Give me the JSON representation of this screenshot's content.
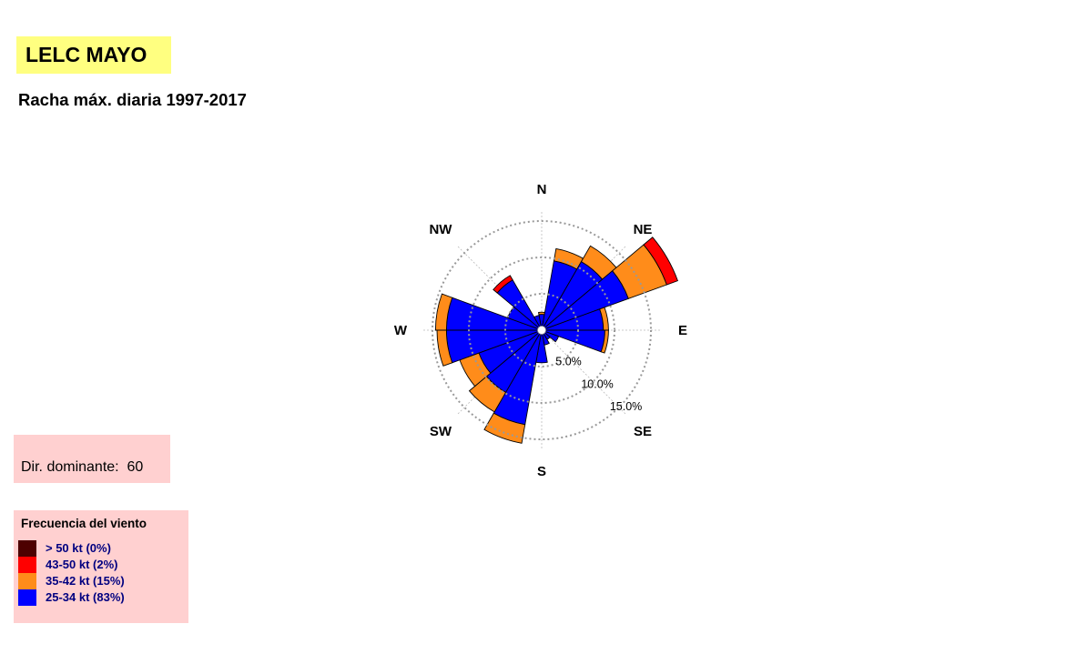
{
  "header": {
    "title": "LELC MAYO",
    "subtitle": "Racha máx. diaria 1997-2017"
  },
  "dominant": {
    "label": "Dir. dominante:",
    "value": "60"
  },
  "legend": {
    "title": "Frecuencia del viento"
  },
  "chart_data": {
    "type": "wind_rose",
    "directions": [
      "N",
      "NE",
      "E",
      "SE",
      "S",
      "SW",
      "W",
      "NW"
    ],
    "ring_labels": [
      "5.0%",
      "10.0%",
      "15.0%"
    ],
    "rings": [
      5,
      10,
      15
    ],
    "bins": [
      {
        "name": "> 50 kt (0%)",
        "color": "#4d0000"
      },
      {
        "name": "43-50 kt (2%)",
        "color": "#ff0000"
      },
      {
        "name": "35-42 kt (15%)",
        "color": "#ff8c1a"
      },
      {
        "name": "25-34 kt (83%)",
        "color": "#0000ff"
      }
    ],
    "sectors": [
      {
        "angle": 0,
        "values": [
          1.8,
          0.3,
          0,
          0
        ]
      },
      {
        "angle": 20,
        "values": [
          9.3,
          1.7,
          0,
          0
        ]
      },
      {
        "angle": 40,
        "values": [
          10.5,
          2.5,
          0,
          0
        ]
      },
      {
        "angle": 60,
        "values": [
          12.3,
          5.6,
          1.6,
          0
        ]
      },
      {
        "angle": 80,
        "values": [
          8.1,
          0.7,
          0,
          0
        ]
      },
      {
        "angle": 100,
        "values": [
          8.3,
          0.5,
          0,
          0
        ]
      },
      {
        "angle": 120,
        "values": [
          2.1,
          0,
          0,
          0
        ]
      },
      {
        "angle": 140,
        "values": [
          1.1,
          0,
          0,
          0
        ]
      },
      {
        "angle": 160,
        "values": [
          1.7,
          0,
          0,
          0
        ]
      },
      {
        "angle": 180,
        "values": [
          4.1,
          0,
          0,
          0
        ]
      },
      {
        "angle": 200,
        "values": [
          12.8,
          2.6,
          0,
          0
        ]
      },
      {
        "angle": 220,
        "values": [
          9.5,
          3.1,
          0,
          0
        ]
      },
      {
        "angle": 240,
        "values": [
          8.8,
          2.8,
          0,
          0
        ]
      },
      {
        "angle": 260,
        "values": [
          12.7,
          1.3,
          0,
          0
        ]
      },
      {
        "angle": 280,
        "values": [
          12.7,
          1.5,
          0,
          0
        ]
      },
      {
        "angle": 300,
        "values": [
          4.6,
          0,
          0,
          0
        ]
      },
      {
        "angle": 320,
        "values": [
          7.6,
          0,
          0.7,
          0
        ]
      },
      {
        "angle": 340,
        "values": [
          1.7,
          0,
          0,
          0
        ]
      }
    ]
  }
}
